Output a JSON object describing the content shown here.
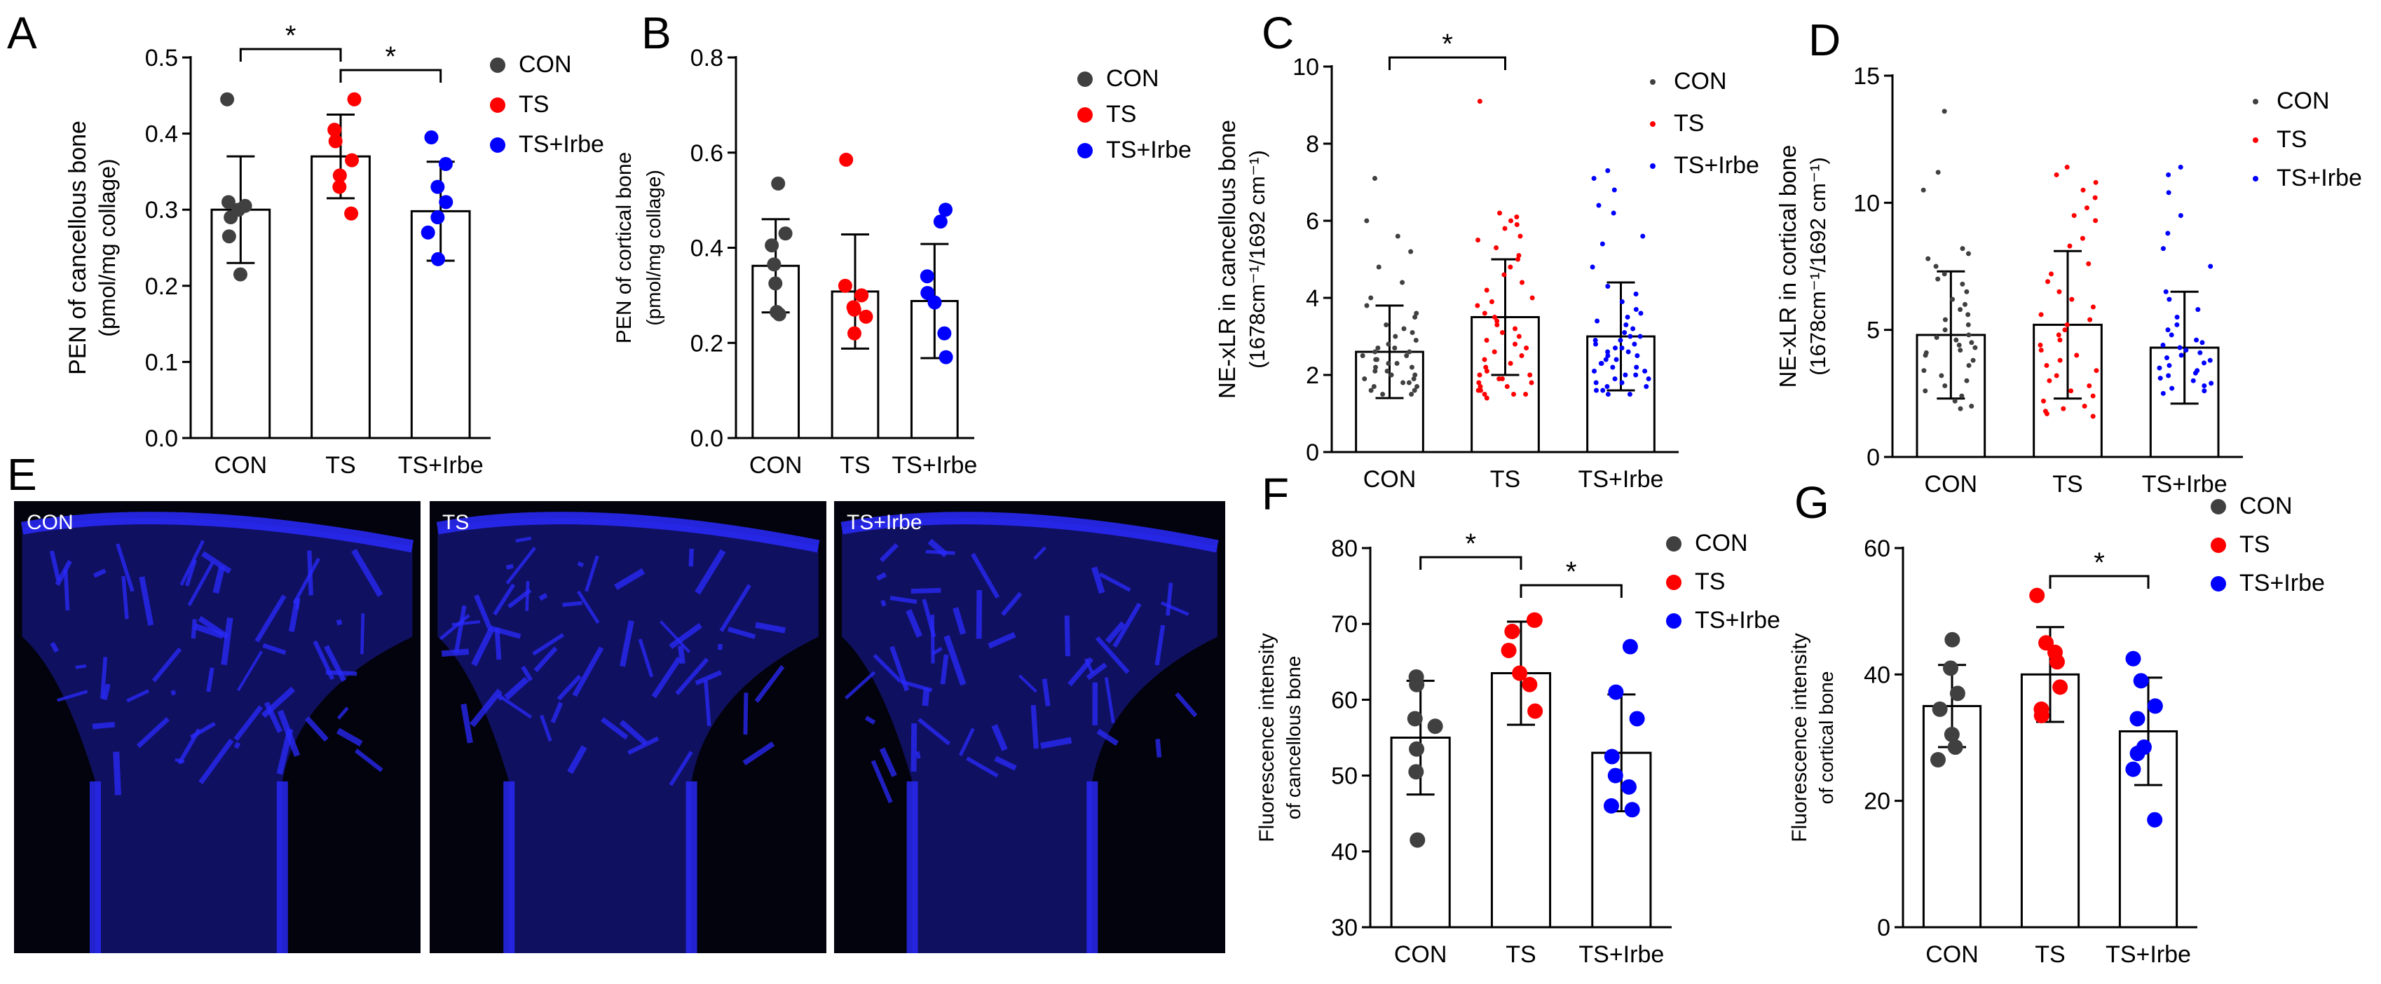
{
  "panel_letters": [
    "A",
    "B",
    "C",
    "D",
    "E",
    "F",
    "G"
  ],
  "micrograph": {
    "labels": [
      "CON",
      "TS",
      "TS+Irbe"
    ],
    "colors": {
      "background": "#03030d",
      "stain": "#2a2aff"
    }
  },
  "colors": {
    "CON": "#404040",
    "TS": "#ff0000",
    "TS+Irbe": "#0000ff",
    "axis": "#000000"
  },
  "chart_data": [
    {
      "panel": "A",
      "type": "bar",
      "categories": [
        "CON",
        "TS",
        "TS+Irbe"
      ],
      "ylabel": "PEN of cancellous bone",
      "ylabel2": "(pmol/mg collage)",
      "ylim": [
        0.0,
        0.5
      ],
      "yticks": [
        "0.0",
        "0.1",
        "0.2",
        "0.3",
        "0.4",
        "0.5"
      ],
      "means": [
        0.3,
        0.37,
        0.298
      ],
      "sd": [
        0.07,
        0.055,
        0.065
      ],
      "points": [
        [
          0.445,
          0.31,
          0.305,
          0.3,
          0.29,
          0.265,
          0.215
        ],
        [
          0.445,
          0.405,
          0.39,
          0.365,
          0.345,
          0.33,
          0.295
        ],
        [
          0.395,
          0.36,
          0.33,
          0.31,
          0.29,
          0.27,
          0.235
        ]
      ],
      "legend": [
        "CON",
        "TS",
        "TS+Irbe"
      ],
      "significance": [
        {
          "pair": [
            0,
            1
          ],
          "label": "*"
        },
        {
          "pair": [
            1,
            2
          ],
          "label": "*"
        }
      ]
    },
    {
      "panel": "B",
      "type": "bar",
      "categories": [
        "CON",
        "TS",
        "TS+Irbe"
      ],
      "ylabel": "PEN of cortical bone",
      "ylabel2": "(pmol/mg collage)",
      "ylim": [
        0.0,
        0.8
      ],
      "yticks": [
        "0.0",
        "0.2",
        "0.4",
        "0.6",
        "0.8"
      ],
      "means": [
        0.362,
        0.308,
        0.288
      ],
      "sd": [
        0.098,
        0.12,
        0.12
      ],
      "points": [
        [
          0.535,
          0.43,
          0.405,
          0.365,
          0.325,
          0.265,
          0.26
        ],
        [
          0.585,
          0.32,
          0.3,
          0.275,
          0.27,
          0.255,
          0.22
        ],
        [
          0.48,
          0.455,
          0.34,
          0.305,
          0.285,
          0.22,
          0.17
        ]
      ],
      "legend": [
        "CON",
        "TS",
        "TS+Irbe"
      ],
      "significance": []
    },
    {
      "panel": "C",
      "type": "bar",
      "categories": [
        "CON",
        "TS",
        "TS+Irbe"
      ],
      "ylabel": "NE-xLR in cancellous bone",
      "ylabel2": "(1678cm⁻¹/1692 cm⁻¹)",
      "ylim": [
        0,
        10
      ],
      "yticks": [
        "0",
        "2",
        "4",
        "6",
        "8",
        "10"
      ],
      "means": [
        2.6,
        3.5,
        3.0
      ],
      "sd": [
        1.2,
        1.5,
        1.4
      ],
      "points": [
        [
          7.1,
          6.0,
          5.6,
          5.2,
          4.8,
          4.4,
          4.0,
          3.8,
          3.6,
          3.5,
          3.3,
          3.2,
          3.1,
          3.0,
          2.9,
          2.8,
          2.7,
          2.7,
          2.6,
          2.6,
          2.5,
          2.5,
          2.4,
          2.4,
          2.3,
          2.3,
          2.2,
          2.2,
          2.1,
          2.1,
          2.0,
          2.0,
          1.9,
          1.9,
          1.8,
          1.8,
          1.7,
          1.7,
          1.6,
          1.6,
          1.5,
          1.5
        ],
        [
          9.1,
          6.2,
          6.1,
          6.0,
          5.9,
          5.8,
          5.6,
          5.5,
          5.3,
          5.1,
          5.0,
          4.8,
          4.6,
          4.4,
          4.2,
          4.0,
          3.9,
          3.8,
          3.6,
          3.5,
          3.4,
          3.3,
          3.2,
          3.1,
          3.0,
          2.9,
          2.8,
          2.7,
          2.6,
          2.5,
          2.4,
          2.3,
          2.2,
          2.1,
          2.0,
          2.0,
          1.9,
          1.9,
          1.8,
          1.8,
          1.7,
          1.7,
          1.6,
          1.6,
          1.5,
          1.5,
          1.5,
          1.4
        ],
        [
          7.3,
          7.1,
          6.8,
          6.4,
          6.2,
          5.6,
          5.4,
          4.8,
          4.3,
          4.1,
          3.9,
          3.7,
          3.6,
          3.5,
          3.4,
          3.3,
          3.2,
          3.1,
          3.0,
          3.0,
          2.9,
          2.9,
          2.8,
          2.8,
          2.7,
          2.7,
          2.6,
          2.6,
          2.5,
          2.5,
          2.4,
          2.4,
          2.3,
          2.3,
          2.2,
          2.2,
          2.1,
          2.1,
          2.0,
          2.0,
          1.9,
          1.9,
          1.8,
          1.8,
          1.7,
          1.7,
          1.6,
          1.6,
          1.5,
          1.5
        ]
      ],
      "legend": [
        "CON",
        "TS",
        "TS+Irbe"
      ],
      "significance": [
        {
          "pair": [
            0,
            1
          ],
          "label": "*"
        }
      ]
    },
    {
      "panel": "D",
      "type": "bar",
      "categories": [
        "CON",
        "TS",
        "TS+Irbe"
      ],
      "ylabel": "NE-xLR in cortical bone",
      "ylabel2": "(1678cm⁻¹/1692 cm⁻¹)",
      "ylim": [
        0,
        15
      ],
      "yticks": [
        "0",
        "5",
        "10",
        "15"
      ],
      "means": [
        4.8,
        5.2,
        4.3
      ],
      "sd": [
        2.5,
        2.9,
        2.2
      ],
      "points": [
        [
          13.6,
          11.2,
          10.5,
          8.2,
          8.0,
          7.8,
          7.5,
          7.2,
          7.0,
          6.8,
          6.5,
          6.2,
          6.0,
          5.8,
          5.6,
          5.4,
          5.2,
          5.0,
          4.8,
          4.7,
          4.6,
          4.5,
          4.4,
          4.3,
          4.2,
          4.1,
          4.0,
          3.8,
          3.6,
          3.4,
          3.2,
          3.0,
          2.8,
          2.6,
          2.4,
          2.2,
          2.0,
          1.9
        ],
        [
          11.4,
          11.1,
          10.8,
          10.5,
          10.2,
          9.8,
          9.5,
          9.3,
          8.6,
          8.3,
          7.6,
          7.2,
          6.9,
          6.5,
          6.2,
          5.9,
          5.6,
          5.4,
          5.2,
          5.0,
          4.8,
          4.6,
          4.4,
          4.2,
          4.0,
          3.8,
          3.6,
          3.4,
          3.2,
          3.0,
          2.8,
          2.6,
          2.4,
          2.2,
          2.0,
          1.9,
          1.8,
          1.7,
          1.6
        ],
        [
          11.4,
          11.1,
          10.4,
          9.5,
          8.8,
          8.2,
          7.5,
          6.5,
          6.2,
          5.8,
          5.5,
          5.2,
          5.0,
          4.8,
          4.6,
          4.5,
          4.4,
          4.3,
          4.2,
          4.1,
          4.0,
          3.9,
          3.8,
          3.7,
          3.6,
          3.5,
          3.4,
          3.3,
          3.2,
          3.1,
          3.0,
          2.9,
          2.8,
          2.7,
          2.6,
          2.5
        ]
      ],
      "legend": [
        "CON",
        "TS",
        "TS+Irbe"
      ],
      "significance": []
    },
    {
      "panel": "F",
      "type": "bar",
      "categories": [
        "CON",
        "TS",
        "TS+Irbe"
      ],
      "ylabel": "Fluorescence intensity",
      "ylabel2": "of cancellous bone",
      "ylim": [
        30,
        80
      ],
      "yticks": [
        "30",
        "40",
        "50",
        "60",
        "70",
        "80"
      ],
      "means": [
        55.0,
        63.5,
        53.0
      ],
      "sd": [
        7.5,
        6.8,
        7.7
      ],
      "points": [
        [
          63.0,
          62.0,
          57.5,
          56.5,
          53.5,
          50.5,
          41.5
        ],
        [
          70.5,
          70.5,
          69.0,
          66.5,
          63.5,
          62.0,
          58.5
        ],
        [
          67.0,
          61.0,
          57.5,
          52.5,
          50.0,
          48.5,
          45.5,
          46.0
        ]
      ],
      "legend": [
        "CON",
        "TS",
        "TS+Irbe"
      ],
      "significance": [
        {
          "pair": [
            0,
            1
          ],
          "label": "*"
        },
        {
          "pair": [
            1,
            2
          ],
          "label": "*"
        }
      ]
    },
    {
      "panel": "G",
      "type": "bar",
      "categories": [
        "CON",
        "TS",
        "TS+Irbe"
      ],
      "ylabel": "Fluorescence intensity",
      "ylabel2": "of cortical bone",
      "ylim": [
        0,
        60
      ],
      "yticks": [
        "0",
        "20",
        "40",
        "60"
      ],
      "means": [
        35.0,
        40.0,
        31.0
      ],
      "sd": [
        6.5,
        7.5,
        8.5
      ],
      "points": [
        [
          45.5,
          41.0,
          37.0,
          34.5,
          30.5,
          28.5,
          26.5
        ],
        [
          52.5,
          45.0,
          43.5,
          42.0,
          38.0,
          34.5,
          33.5
        ],
        [
          42.5,
          39.0,
          35.0,
          33.0,
          28.5,
          27.5,
          25.0,
          17.0
        ]
      ],
      "legend": [
        "CON",
        "TS",
        "TS+Irbe"
      ],
      "significance": [
        {
          "pair": [
            1,
            2
          ],
          "label": "*"
        }
      ]
    }
  ]
}
